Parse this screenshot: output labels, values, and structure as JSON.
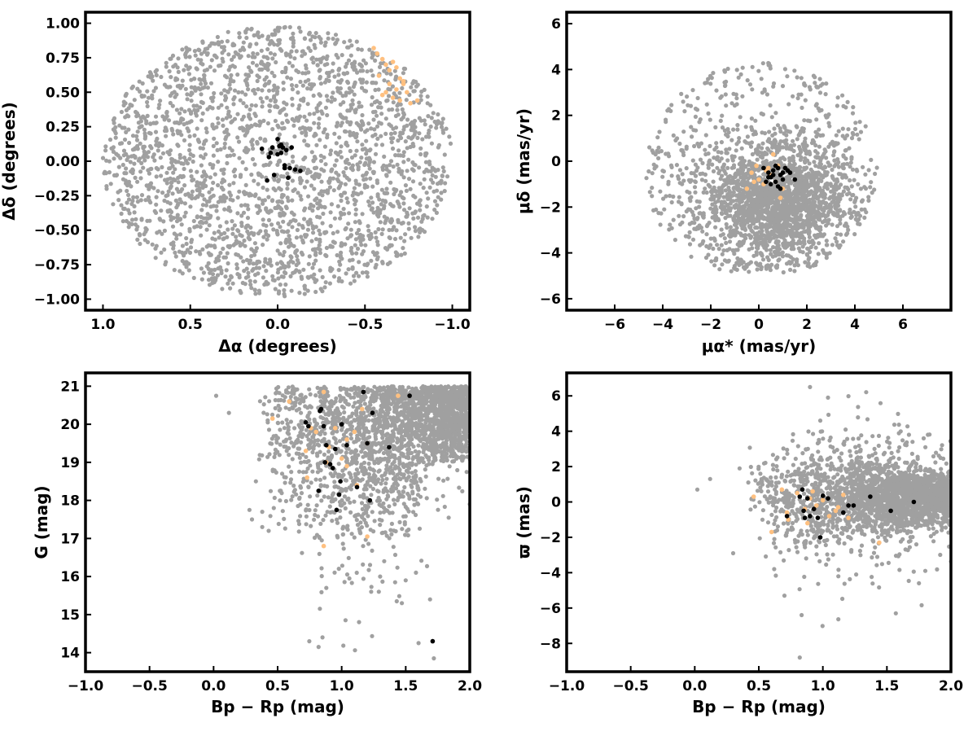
{
  "colors": {
    "field": "#a0a0a0",
    "orange": "#ffc080",
    "black": "#000000",
    "axis": "#000000"
  },
  "chart_data": [
    {
      "type": "scatter",
      "xlabel": "Δα (degrees)",
      "ylabel": "Δδ (degrees)",
      "xlim": [
        1.1,
        -1.1
      ],
      "ylim": [
        -1.08,
        1.08
      ],
      "x_inverted": true,
      "xticks": [
        1.0,
        0.5,
        0.0,
        -0.5,
        -1.0
      ],
      "xtick_labels": [
        "1.0",
        "0.5",
        "0.0",
        "−0.5",
        "−1.0"
      ],
      "yticks": [
        1.0,
        0.75,
        0.5,
        0.25,
        0.0,
        -0.25,
        -0.5,
        -0.75,
        -1.0
      ],
      "ytick_labels": [
        "1.00",
        "0.75",
        "0.50",
        "0.25",
        "0.00",
        "−0.25",
        "−0.50",
        "−0.75",
        "−1.00"
      ],
      "series": [
        {
          "role": "field",
          "distribution": "uniform-disk",
          "count": 2400,
          "center": [
            0,
            0
          ],
          "radius": 1.0,
          "color": "#a0a0a0"
        },
        {
          "role": "orange",
          "color": "#ffc080",
          "x": [
            -0.55,
            -0.57,
            -0.6,
            -0.62,
            -0.64,
            -0.66,
            -0.68,
            -0.7,
            -0.72,
            -0.74,
            -0.62,
            -0.66,
            -0.7,
            -0.76,
            -0.8,
            -0.58,
            -0.64,
            -0.68,
            -0.72,
            -0.6
          ],
          "y": [
            0.82,
            0.78,
            0.74,
            0.7,
            0.66,
            0.72,
            0.68,
            0.6,
            0.56,
            0.5,
            0.5,
            0.46,
            0.44,
            0.42,
            0.44,
            0.62,
            0.56,
            0.52,
            0.58,
            0.48
          ]
        },
        {
          "role": "black",
          "color": "#000000",
          "x": [
            0.0,
            0.03,
            -0.02,
            0.05,
            -0.04,
            -0.07,
            -0.1,
            -0.13,
            0.02,
            -0.06,
            0.06,
            0.09,
            0.0,
            -0.04,
            -0.03,
            -0.02,
            -0.01,
            -0.05,
            0.04,
            -0.08
          ],
          "y": [
            0.16,
            0.1,
            0.06,
            0.03,
            -0.03,
            -0.05,
            -0.06,
            -0.07,
            -0.1,
            -0.12,
            -0.14,
            0.09,
            0.05,
            -0.05,
            0.1,
            0.12,
            0.11,
            0.08,
            0.06,
            0.1
          ]
        }
      ]
    },
    {
      "type": "scatter",
      "xlabel": "μα* (mas/yr)",
      "ylabel": "μδ (mas/yr)",
      "xlim": [
        -8.0,
        8.0
      ],
      "ylim": [
        -6.5,
        6.5
      ],
      "xticks": [
        -6,
        -4,
        -2,
        0,
        2,
        4,
        6
      ],
      "xtick_labels": [
        "−6",
        "−4",
        "−2",
        "0",
        "2",
        "4",
        "6"
      ],
      "yticks": [
        6,
        4,
        2,
        0,
        -2,
        -4,
        -6
      ],
      "ytick_labels": [
        "6",
        "4",
        "2",
        "0",
        "−2",
        "−4",
        "−6"
      ],
      "series": [
        {
          "role": "field",
          "distribution": "clustered-disk",
          "count": 2400,
          "center": [
            0.8,
            -1.8
          ],
          "radius": 4.8,
          "color": "#a0a0a0"
        },
        {
          "role": "orange",
          "color": "#ffc080",
          "x": [
            -0.3,
            0.0,
            0.2,
            0.4,
            0.6,
            0.8,
            1.0,
            -0.5,
            -0.2,
            0.5,
            0.9,
            0.3,
            0.7,
            -0.1
          ],
          "y": [
            -0.5,
            -0.8,
            -1.0,
            -0.3,
            0.3,
            -0.2,
            -1.2,
            -1.2,
            -0.9,
            -0.6,
            -1.6,
            -0.4,
            -0.9,
            -0.2
          ]
        },
        {
          "role": "black",
          "color": "#000000",
          "x": [
            0.2,
            0.4,
            0.5,
            0.6,
            0.7,
            0.8,
            0.9,
            1.0,
            1.1,
            1.3,
            1.5,
            0.3,
            0.6,
            0.8,
            1.2,
            0.9,
            0.5,
            1.0,
            0.7,
            0.4
          ],
          "y": [
            -0.3,
            -0.5,
            -0.7,
            -0.4,
            -0.9,
            -1.1,
            -0.6,
            -0.8,
            -0.3,
            -0.5,
            -0.8,
            -0.9,
            -0.6,
            -0.3,
            -0.4,
            -1.2,
            -1.0,
            -0.5,
            -0.2,
            -0.7
          ]
        }
      ]
    },
    {
      "type": "scatter",
      "xlabel": "Bp − Rp (mag)",
      "ylabel": "G (mag)",
      "xlim": [
        -1.0,
        2.0
      ],
      "ylim": [
        13.5,
        21.35
      ],
      "xticks": [
        -1.0,
        -0.5,
        0.0,
        0.5,
        1.0,
        1.5,
        2.0
      ],
      "xtick_labels": [
        "−1.0",
        "−0.5",
        "0.0",
        "0.5",
        "1.0",
        "1.5",
        "2.0"
      ],
      "yticks": [
        21,
        20,
        19,
        18,
        17,
        16,
        15,
        14
      ],
      "ytick_labels": [
        "21",
        "20",
        "19",
        "18",
        "17",
        "16",
        "15",
        "14"
      ],
      "series": [
        {
          "role": "field",
          "distribution": "cmd-wedge",
          "count": 2600,
          "color": "#a0a0a0"
        },
        {
          "role": "orange",
          "color": "#ffc080",
          "x": [
            0.46,
            0.59,
            0.72,
            0.8,
            0.86,
            0.9,
            0.95,
            1.0,
            1.04,
            1.1,
            1.16,
            1.2,
            1.44,
            0.73,
            0.86,
            1.2,
            0.88,
            1.12,
            0.76,
            1.04
          ],
          "y": [
            20.15,
            20.6,
            19.3,
            19.8,
            20.85,
            19.4,
            19.9,
            19.1,
            18.9,
            19.8,
            20.4,
            19.5,
            20.75,
            18.6,
            16.8,
            17.05,
            19.0,
            18.4,
            19.9,
            19.6
          ]
        },
        {
          "role": "black",
          "color": "#000000",
          "x": [
            0.72,
            0.74,
            0.83,
            0.84,
            0.86,
            0.87,
            0.88,
            0.91,
            0.93,
            0.95,
            0.98,
            1.0,
            1.04,
            1.12,
            1.17,
            1.2,
            1.22,
            1.24,
            1.37,
            1.53,
            0.96,
            1.71,
            0.82,
            0.99
          ],
          "y": [
            20.05,
            19.95,
            20.35,
            20.4,
            19.95,
            19.0,
            19.45,
            18.95,
            18.85,
            19.35,
            18.15,
            20.0,
            19.45,
            18.35,
            20.85,
            19.5,
            18.0,
            20.3,
            19.4,
            20.75,
            17.75,
            14.3,
            18.25,
            18.5
          ]
        }
      ]
    },
    {
      "type": "scatter",
      "xlabel": "Bp − Rp (mag)",
      "ylabel": "ϖ (mas)",
      "xlim": [
        -1.0,
        2.0
      ],
      "ylim": [
        -9.6,
        7.3
      ],
      "xticks": [
        -1.0,
        -0.5,
        0.0,
        0.5,
        1.0,
        1.5,
        2.0
      ],
      "xtick_labels": [
        "−1.0",
        "−0.5",
        "0.0",
        "0.5",
        "1.0",
        "1.5",
        "2.0"
      ],
      "yticks": [
        6,
        4,
        2,
        0,
        -2,
        -4,
        -6,
        -8
      ],
      "ytick_labels": [
        "6",
        "4",
        "2",
        "0",
        "−2",
        "−4",
        "−6",
        "−8"
      ],
      "series": [
        {
          "role": "field",
          "distribution": "parallax-band",
          "count": 2600,
          "color": "#a0a0a0"
        },
        {
          "role": "orange",
          "color": "#ffc080",
          "x": [
            0.46,
            0.6,
            0.72,
            0.8,
            0.86,
            0.9,
            0.95,
            1.0,
            1.05,
            1.1,
            1.16,
            1.2,
            1.44,
            0.73,
            0.88,
            1.12,
            0.92,
            0.68
          ],
          "y": [
            0.3,
            -1.7,
            -0.6,
            0.5,
            -0.4,
            0.2,
            -0.2,
            0.1,
            -0.8,
            -0.5,
            0.4,
            -0.9,
            -2.3,
            -1.0,
            -1.2,
            -0.3,
            0.6,
            0.7
          ]
        },
        {
          "role": "black",
          "color": "#000000",
          "x": [
            0.72,
            0.82,
            0.84,
            0.86,
            0.88,
            0.9,
            0.93,
            0.96,
            0.98,
            1.0,
            1.04,
            1.16,
            1.2,
            1.24,
            1.37,
            1.53,
            1.71,
            0.85
          ],
          "y": [
            -0.8,
            0.3,
            0.7,
            -0.9,
            0.2,
            -0.8,
            -0.4,
            -0.9,
            -2.0,
            0.35,
            0.2,
            -0.6,
            -0.2,
            -0.2,
            0.3,
            -0.5,
            0.0,
            -0.5
          ]
        }
      ]
    }
  ]
}
